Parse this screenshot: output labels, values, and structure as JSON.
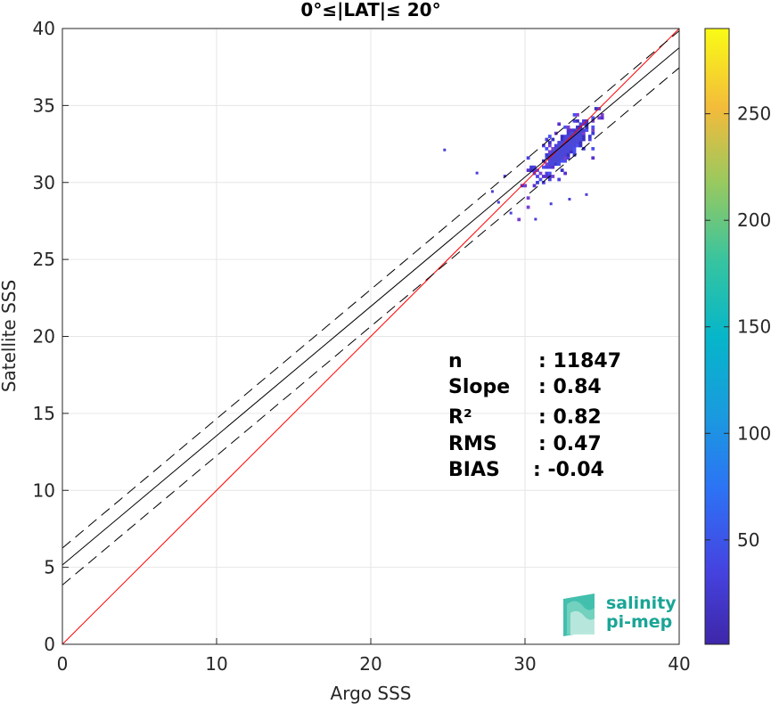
{
  "chart_data": {
    "type": "heatmap",
    "title": "0°≤|LAT|≤ 20°",
    "xlabel": "Argo SSS",
    "ylabel": "Satellite SSS",
    "xlim": [
      0,
      40
    ],
    "ylim": [
      0,
      40
    ],
    "xticks": [
      "0",
      "10",
      "20",
      "30",
      "40"
    ],
    "yticks": [
      "0",
      "5",
      "10",
      "15",
      "20",
      "25",
      "30",
      "35",
      "40"
    ],
    "grid": true,
    "colorbar": {
      "range": [
        1,
        290
      ],
      "ticks": [
        "50",
        "100",
        "150",
        "200",
        "250"
      ],
      "colormap": "parula"
    },
    "density_cluster": {
      "x_center": 32.5,
      "y_center": 32.2,
      "x_range": [
        29.5,
        35.0
      ],
      "y_range": [
        27.5,
        34.8
      ]
    },
    "lines": [
      {
        "name": "one-to-one",
        "color": "#ff0000",
        "style": "solid",
        "slope": 1.0,
        "intercept": 0.0
      },
      {
        "name": "regression",
        "color": "#000000",
        "style": "solid",
        "slope": 0.84,
        "intercept": 5.15
      },
      {
        "name": "regression-plus",
        "color": "#000000",
        "style": "dashed",
        "slope": 0.84,
        "intercept": 6.25
      },
      {
        "name": "regression-minus",
        "color": "#000000",
        "style": "dashed",
        "slope": 0.84,
        "intercept": 3.85
      }
    ],
    "stats": [
      {
        "label": "n",
        "value": ": 11847"
      },
      {
        "label": "Slope",
        "value": ": 0.84"
      },
      {
        "label": "R²",
        "value": ": 0.82"
      },
      {
        "label": "RMS",
        "value": ": 0.47"
      },
      {
        "label": "BIAS",
        "value": ": -0.04"
      }
    ]
  },
  "logo": {
    "line1": "salinity",
    "line2": "pi-mep"
  }
}
